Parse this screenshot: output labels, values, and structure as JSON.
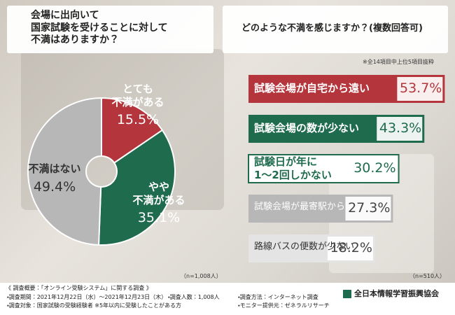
{
  "chart_data": [
    {
      "type": "pie",
      "title": "会場に出向いて\n国家試験を受けることに対して\n不満はありますか？",
      "categories": [
        "とても\n不満がある",
        "やや\n不満がある",
        "不満はない"
      ],
      "values": [
        15.5,
        35.1,
        49.4
      ],
      "value_labels": [
        "15.5%",
        "35.1%",
        "49.4%"
      ],
      "colors": [
        "#b5353c",
        "#1f6b4e",
        "#b7b7b7"
      ],
      "note": "（n=1,008人）"
    },
    {
      "type": "bar",
      "title": "どのような不満を感じますか？(複数回答可)",
      "subtitle": "※全14項目中上位5項目抜粋",
      "categories": [
        "試験会場が自宅から遠い",
        "試験会場の数が少ない",
        "試験日が年に\n1〜2回しかない",
        "試験会場が最寄駅から遠い",
        "路線バスの便数が少ない"
      ],
      "values": [
        53.7,
        43.3,
        30.2,
        27.3,
        18.2
      ],
      "value_labels": [
        "53.7%",
        "43.3%",
        "30.2%",
        "27.3%",
        "18.2%"
      ],
      "colors": [
        "#b5353c",
        "#1f6b4e",
        "#ffffff",
        "#b7b7b7",
        "#e4e4e4"
      ],
      "note": "（n=510人）"
    }
  ],
  "footer": {
    "heading": "《 調査概要：「オンライン受験システム」に関する調査 》",
    "items": [
      "・調査期間：2021年12月22日（水）～2021年12月23日（木）",
      "・調査人数：1,008人",
      "・調査方法：インターネット調査",
      "・調査対象：国家試験の受験経験者 ※5年以内に受験したことがある方",
      "・モニター提供元：ゼネラルリサーチ"
    ],
    "logo": "全日本情報学習振興協会"
  }
}
